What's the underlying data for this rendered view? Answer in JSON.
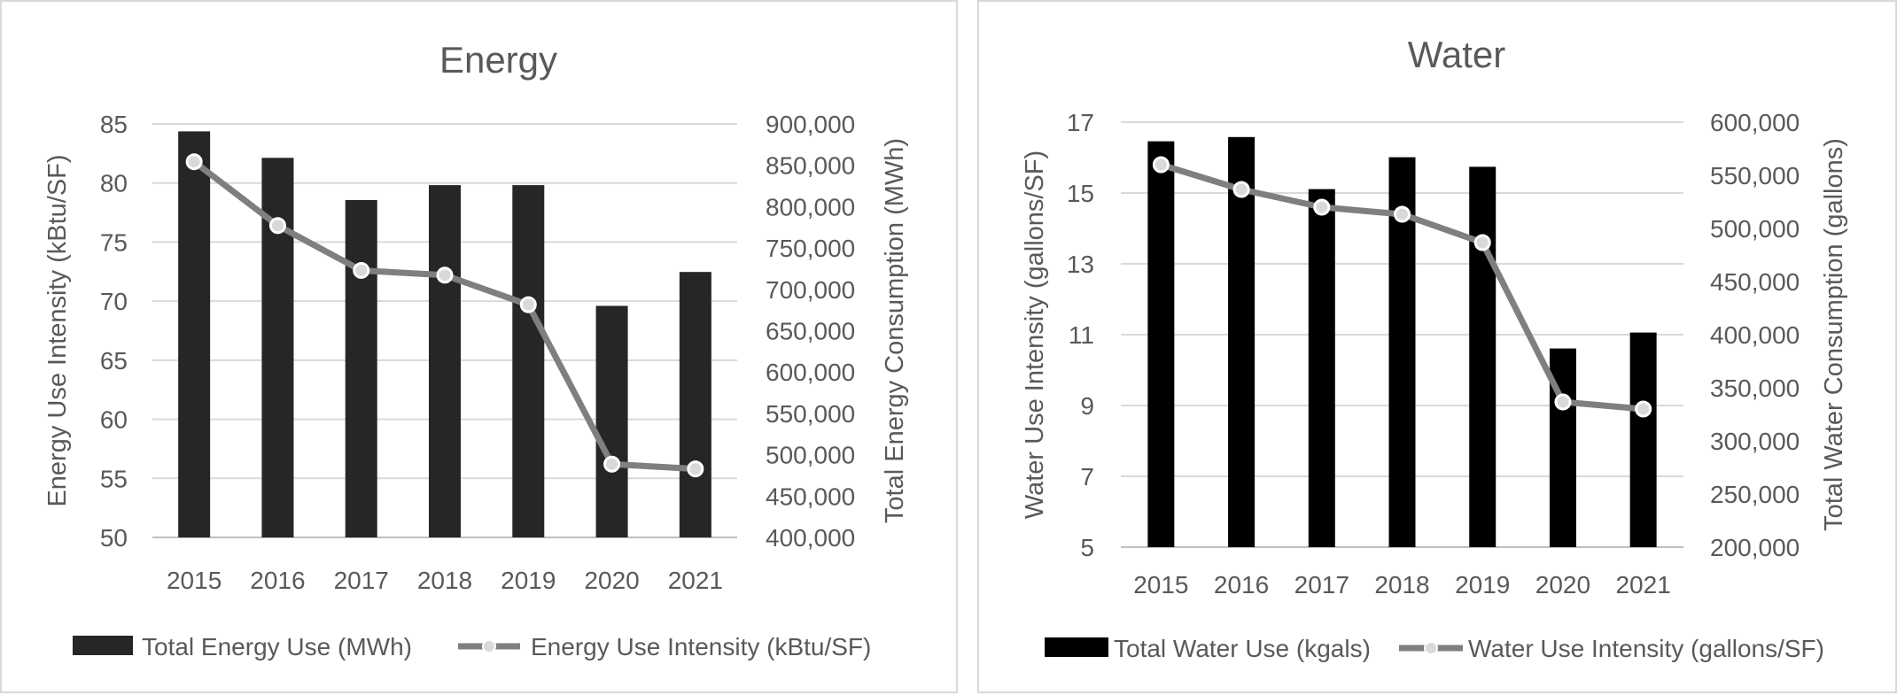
{
  "chart_data": [
    {
      "id": "energy",
      "type": "bar",
      "title": "Energy",
      "categories": [
        "2015",
        "2016",
        "2017",
        "2018",
        "2019",
        "2020",
        "2021"
      ],
      "y_left": {
        "label": "Energy Use Intensity (kBtu/SF)",
        "min": 50,
        "max": 85,
        "step": 5,
        "ticks": [
          "50",
          "55",
          "60",
          "65",
          "70",
          "75",
          "80",
          "85"
        ]
      },
      "y_right": {
        "label": "Total Energy Consumption (MWh)",
        "min": 400000,
        "max": 900000,
        "step": 50000,
        "ticks": [
          "400,000",
          "450,000",
          "500,000",
          "550,000",
          "600,000",
          "650,000",
          "700,000",
          "750,000",
          "800,000",
          "850,000",
          "900,000"
        ]
      },
      "series": [
        {
          "name": "Total Energy Use (MWh)",
          "type": "bar",
          "axis": "right",
          "color": "#262626",
          "values": [
            891000,
            859000,
            808000,
            826000,
            826000,
            680000,
            721000
          ]
        },
        {
          "name": "Energy Use Intensity (kBtu/SF)",
          "type": "line",
          "axis": "left",
          "color": "#7f7f7f",
          "marker_fill": "#d9d9d9",
          "values": [
            81.8,
            76.4,
            72.6,
            72.2,
            69.7,
            56.2,
            55.8
          ]
        }
      ],
      "grid": true,
      "legend": "bottom"
    },
    {
      "id": "water",
      "type": "bar",
      "title": "Water",
      "categories": [
        "2015",
        "2016",
        "2017",
        "2018",
        "2019",
        "2020",
        "2021"
      ],
      "y_left": {
        "label": "Water Use Intensity (gallons/SF)",
        "min": 5,
        "max": 17,
        "step": 2,
        "ticks": [
          "5",
          "7",
          "9",
          "11",
          "13",
          "15",
          "17"
        ]
      },
      "y_right": {
        "label": "Total Water Consumption (gallons)",
        "min": 200000,
        "max": 600000,
        "step": 50000,
        "ticks": [
          "200,000",
          "250,000",
          "300,000",
          "350,000",
          "400,000",
          "450,000",
          "500,000",
          "550,000",
          "600,000"
        ]
      },
      "series": [
        {
          "name": "Total Water Use (kgals)",
          "type": "bar",
          "axis": "right",
          "color": "#000000",
          "values": [
            582000,
            586000,
            537000,
            567000,
            558000,
            387000,
            402000
          ]
        },
        {
          "name": "Water Use Intensity (gallons/SF)",
          "type": "line",
          "axis": "left",
          "color": "#7f7f7f",
          "marker_fill": "#d9d9d9",
          "values": [
            15.8,
            15.1,
            14.6,
            14.4,
            13.6,
            9.1,
            8.9
          ]
        }
      ],
      "grid": true,
      "legend": "bottom"
    }
  ]
}
